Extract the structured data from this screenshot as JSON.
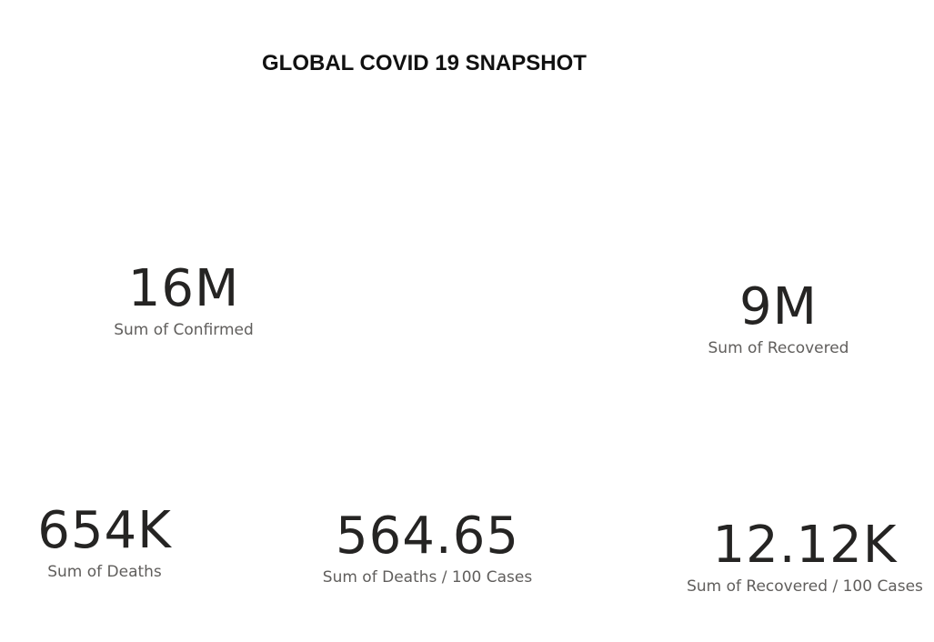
{
  "page": {
    "title": "GLOBAL COVID 19 SNAPSHOT"
  },
  "cards": {
    "confirmed": {
      "value": "16M",
      "label": "Sum of Confirmed"
    },
    "recovered": {
      "value": "9M",
      "label": "Sum of Recovered"
    },
    "deaths": {
      "value": "654K",
      "label": "Sum of Deaths"
    },
    "deaths_per_100": {
      "value": "564.65",
      "label": "Sum of Deaths / 100 Cases"
    },
    "recovered_per_100": {
      "value": "12.12K",
      "label": "Sum of Recovered / 100 Cases"
    }
  },
  "colors": {
    "background": "#ffffff",
    "value_text": "#252423",
    "label_text": "#605e5c",
    "title_text": "#111111"
  }
}
